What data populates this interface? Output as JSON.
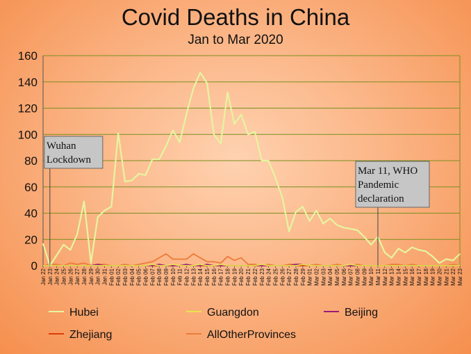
{
  "chart_data": {
    "type": "line",
    "title": "Covid Deaths in China",
    "subtitle": "Jan to Mar 2020",
    "xlabel": "",
    "ylabel": "",
    "ylim": [
      0,
      160
    ],
    "yticks": [
      0,
      20,
      40,
      60,
      80,
      100,
      120,
      140,
      160
    ],
    "grid": true,
    "legend_position": "bottom",
    "categories": [
      "Jan 22",
      "Jan 23",
      "Jan 24",
      "Jan 25",
      "Jan 26",
      "Jan 27",
      "Jan 28",
      "Jan 29",
      "Jan 30",
      "Jan 31",
      "Feb 01",
      "Feb 02",
      "Feb 03",
      "Feb 04",
      "Feb 05",
      "Feb 06",
      "Feb 07",
      "Feb 08",
      "Feb 09",
      "Feb 10",
      "Feb 11",
      "Feb 12",
      "Feb 13",
      "Feb 14",
      "Feb 15",
      "Feb 16",
      "Feb 17",
      "Feb 18",
      "Feb 19",
      "Feb 20",
      "Feb 21",
      "Feb 22",
      "Feb 23",
      "Feb 24",
      "Feb 25",
      "Feb 26",
      "Feb 27",
      "Feb 28",
      "Feb 29",
      "Mar 01",
      "Mar 02",
      "Mar 03",
      "Mar 04",
      "Mar 05",
      "Mar 06",
      "Mar 07",
      "Mar 08",
      "Mar 09",
      "Mar 10",
      "Mar 11",
      "Mar 12",
      "Mar 13",
      "Mar 14",
      "Mar 15",
      "Mar 16",
      "Mar 17",
      "Mar 18",
      "Mar 19",
      "Mar 20",
      "Mar 21",
      "Mar 22",
      "Mar 23"
    ],
    "series": [
      {
        "name": "Hubei",
        "color": "#e6f5a0",
        "values": [
          17,
          0,
          8,
          16,
          12,
          24,
          49,
          2,
          37,
          42,
          45,
          101,
          64,
          65,
          70,
          69,
          81,
          81,
          91,
          103,
          94,
          116,
          135,
          147,
          139,
          100,
          93,
          132,
          108,
          115,
          100,
          102,
          80,
          80,
          67,
          52,
          26,
          41,
          45,
          34,
          42,
          32,
          36,
          31,
          29,
          28,
          27,
          22,
          16,
          22,
          10,
          6,
          13,
          10,
          14,
          12,
          11,
          7,
          2,
          5,
          4,
          9
        ]
      },
      {
        "name": "Guangdon",
        "color": "#e7e34f",
        "values": [
          0,
          0,
          0,
          0,
          0,
          0,
          0,
          0,
          0,
          0,
          0,
          0,
          0,
          0,
          0,
          0,
          1,
          0,
          0,
          1,
          0,
          0,
          0,
          1,
          0,
          0,
          1,
          0,
          0,
          0,
          0,
          0,
          1,
          0,
          0,
          0,
          0,
          0,
          1,
          0,
          0,
          0,
          0,
          0,
          0,
          1,
          0,
          0,
          0,
          0,
          0,
          0,
          0,
          0,
          0,
          0,
          0,
          0,
          0,
          0,
          0,
          0
        ]
      },
      {
        "name": "Beijing",
        "color": "#9b1a7a",
        "values": [
          0,
          0,
          0,
          0,
          0,
          0,
          0,
          0,
          1,
          0,
          0,
          0,
          0,
          0,
          0,
          0,
          0,
          1,
          0,
          0,
          0,
          1,
          0,
          0,
          1,
          0,
          0,
          0,
          0,
          0,
          0,
          0,
          0,
          0,
          0,
          0,
          0,
          1,
          1,
          0,
          0,
          0,
          0,
          0,
          0,
          0,
          0,
          0,
          0,
          0,
          0,
          0,
          0,
          0,
          0,
          0,
          0,
          0,
          0,
          0,
          0,
          0
        ]
      },
      {
        "name": "Zhejiang",
        "color": "#d93d0a",
        "values": [
          0,
          0,
          0,
          0,
          0,
          0,
          0,
          0,
          0,
          0,
          0,
          0,
          0,
          0,
          0,
          0,
          0,
          0,
          0,
          0,
          0,
          0,
          0,
          0,
          0,
          0,
          0,
          0,
          0,
          0,
          0,
          0,
          0,
          0,
          0,
          0,
          0,
          0,
          0,
          0,
          0,
          0,
          0,
          0,
          0,
          0,
          0,
          0,
          0,
          0,
          0,
          0,
          0,
          0,
          0,
          0,
          0,
          0,
          0,
          0,
          0,
          0
        ]
      },
      {
        "name": "AllOtherProvinces",
        "color": "#ec7b3a",
        "values": [
          0,
          1,
          1,
          0,
          2,
          1,
          2,
          0,
          1,
          1,
          0,
          0,
          1,
          0,
          1,
          2,
          3,
          6,
          9,
          5,
          5,
          5,
          9,
          6,
          3,
          3,
          2,
          7,
          4,
          6,
          1,
          1,
          0,
          1,
          0,
          0,
          1,
          1,
          1,
          0,
          1,
          0,
          0,
          1,
          0,
          0,
          1,
          0,
          0,
          0,
          0,
          1,
          1,
          0,
          1,
          0,
          0,
          0,
          0,
          0,
          1,
          0
        ]
      }
    ],
    "annotations": [
      {
        "category_index": 1,
        "lines": [
          "Wuhan",
          "Lockdown"
        ]
      },
      {
        "category_index": 49,
        "lines": [
          "Mar 11, WHO",
          "Pandemic",
          "declaration"
        ]
      }
    ]
  }
}
